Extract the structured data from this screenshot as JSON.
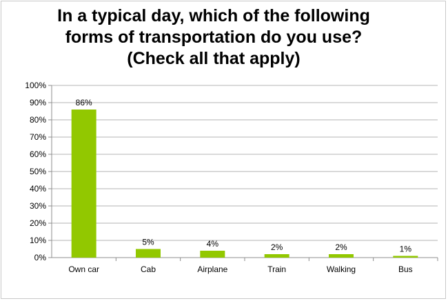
{
  "chart_data": {
    "type": "bar",
    "title_lines": [
      "In a typical day, which of the following",
      "forms of transportation do you use?",
      "(Check all that apply)"
    ],
    "categories": [
      "Own car",
      "Cab",
      "Airplane",
      "Train",
      "Walking",
      "Bus"
    ],
    "values": [
      86,
      5,
      4,
      2,
      2,
      1
    ],
    "data_labels": [
      "86%",
      "5%",
      "4%",
      "2%",
      "2%",
      "1%"
    ],
    "y_ticks": [
      "0%",
      "10%",
      "20%",
      "30%",
      "40%",
      "50%",
      "60%",
      "70%",
      "80%",
      "90%",
      "100%"
    ],
    "ylim": [
      0,
      100
    ],
    "grid": true,
    "bar_color": "#92c800",
    "grid_color": "#b3b3b3"
  }
}
